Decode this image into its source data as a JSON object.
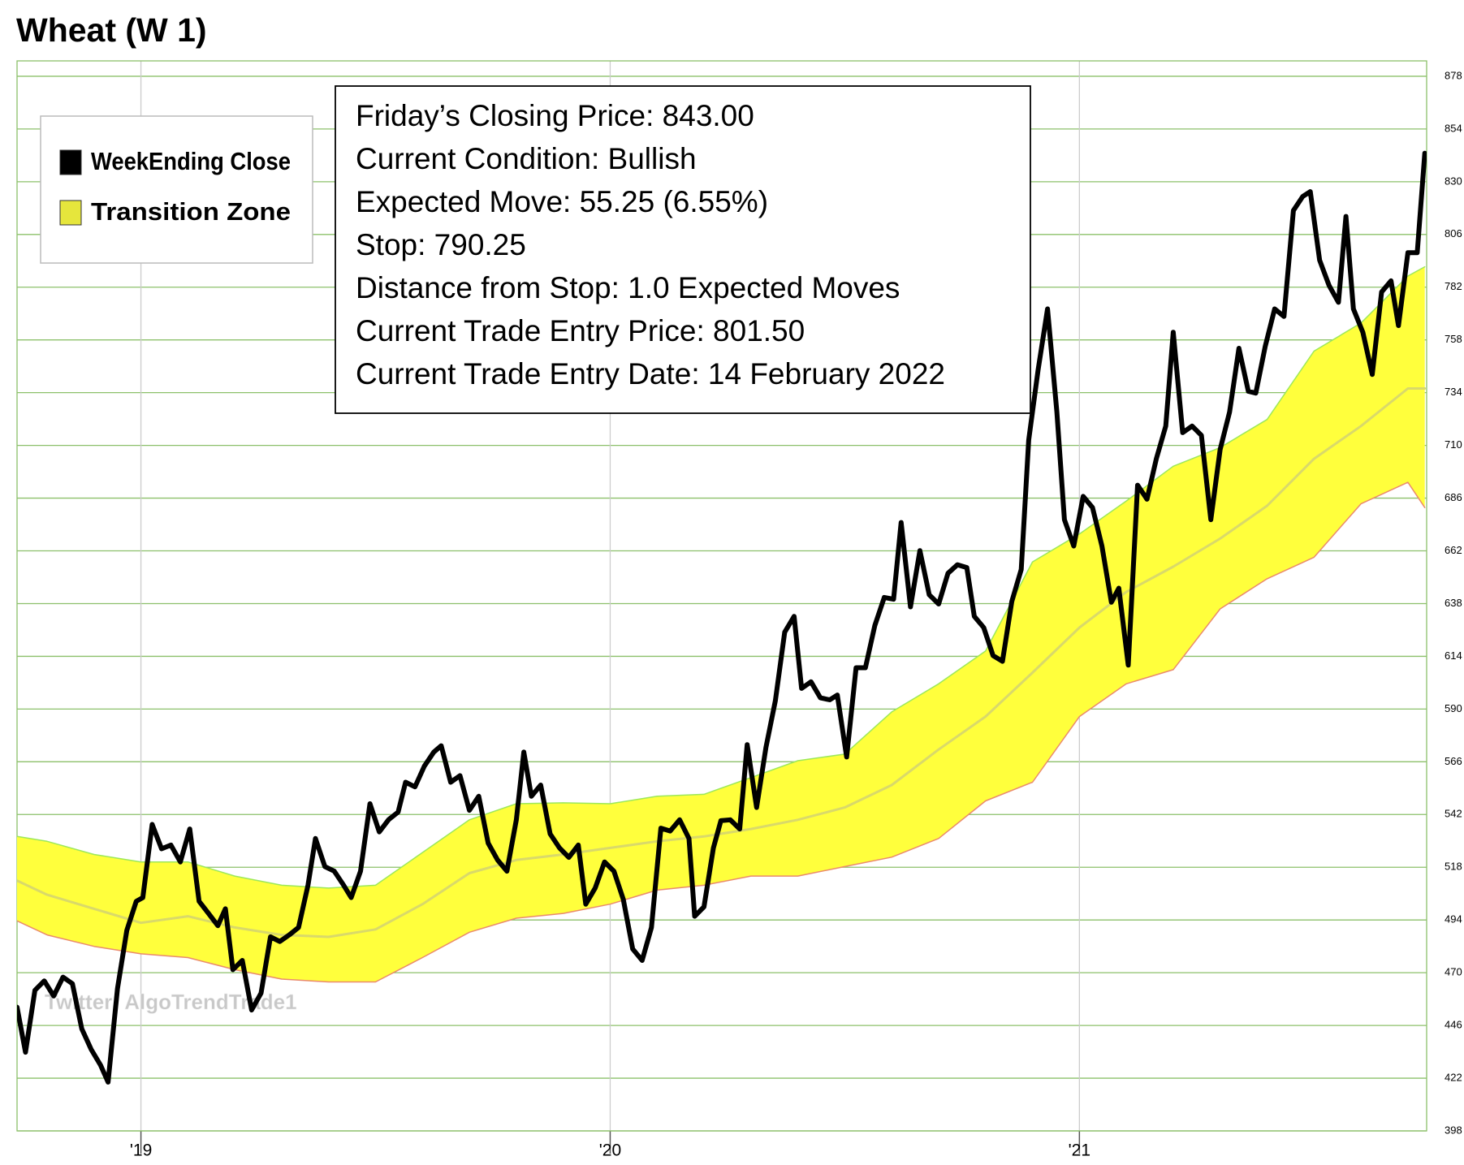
{
  "chart_data": {
    "type": "line",
    "title": "Wheat (W 1)",
    "watermark": "Twitter: AlgoTrendTrade1",
    "info_box": [
      "Friday’s Closing Price: 843.00",
      "Current Condition: Bullish",
      "Expected Move: 55.25 (6.55%)",
      "Stop: 790.25",
      "Distance from Stop: 1.0 Expected Moves",
      "Current Trade Entry Price: 801.50",
      "Current Trade Entry Date: 14 February 2022"
    ],
    "xlim": [
      2018.736,
      2021.74
    ],
    "xticks": [
      {
        "value": 2019,
        "label": "'19"
      },
      {
        "value": 2020,
        "label": "'20"
      },
      {
        "value": 2021,
        "label": "'21"
      }
    ],
    "ylim": [
      398,
      885
    ],
    "yticks": [
      398,
      422,
      446,
      470,
      494,
      518,
      542,
      566,
      590,
      614,
      638,
      662,
      686,
      710,
      734,
      758,
      782,
      806,
      830,
      854,
      878
    ],
    "grid": true,
    "grid_color": "#8cc06a",
    "series": [
      {
        "name": "WeekEnding Close",
        "color": "#000000",
        "x": [
          2018.736,
          2018.754,
          2018.774,
          2018.794,
          2018.814,
          2018.834,
          2018.854,
          2018.874,
          2018.894,
          2018.914,
          2018.93,
          2018.95,
          2018.97,
          2018.99,
          2019.004,
          2019.024,
          2019.044,
          2019.064,
          2019.084,
          2019.104,
          2019.124,
          2019.144,
          2019.164,
          2019.18,
          2019.196,
          2019.216,
          2019.236,
          2019.256,
          2019.276,
          2019.296,
          2019.316,
          2019.336,
          2019.356,
          2019.372,
          2019.392,
          2019.412,
          2019.432,
          2019.448,
          2019.468,
          2019.488,
          2019.508,
          2019.528,
          2019.548,
          2019.564,
          2019.584,
          2019.604,
          2019.624,
          2019.64,
          2019.66,
          2019.68,
          2019.7,
          2019.72,
          2019.74,
          2019.76,
          2019.78,
          2019.8,
          2019.816,
          2019.832,
          2019.852,
          2019.872,
          2019.892,
          2019.912,
          2019.932,
          2019.948,
          2019.968,
          2019.988,
          2020.008,
          2020.028,
          2020.048,
          2020.068,
          2020.088,
          2020.108,
          2020.128,
          2020.148,
          2020.168,
          2020.18,
          2020.2,
          2020.22,
          2020.236,
          2020.256,
          2020.276,
          2020.292,
          2020.312,
          2020.332,
          2020.352,
          2020.372,
          2020.392,
          2020.408,
          2020.428,
          2020.448,
          2020.468,
          2020.484,
          2020.504,
          2020.524,
          2020.544,
          2020.564,
          2020.584,
          2020.604,
          2020.62,
          2020.64,
          2020.66,
          2020.68,
          2020.7,
          2020.72,
          2020.74,
          2020.76,
          2020.776,
          2020.796,
          2020.816,
          2020.836,
          2020.856,
          2020.876,
          2020.892,
          2020.912,
          2020.932,
          2020.952,
          2020.968,
          2020.988,
          2021.008,
          2021.028,
          2021.048,
          2021.068,
          2021.084,
          2021.104,
          2021.124,
          2021.144,
          2021.164,
          2021.184,
          2021.2,
          2021.22,
          2021.24,
          2021.26,
          2021.28,
          2021.3,
          2021.32,
          2021.34,
          2021.36,
          2021.376,
          2021.396,
          2021.416,
          2021.436,
          2021.456,
          2021.476,
          2021.492,
          2021.512,
          2021.532,
          2021.552,
          2021.568,
          2021.584,
          2021.604,
          2021.624,
          2021.644,
          2021.664,
          2021.68,
          2021.7,
          2021.72,
          2021.736
        ],
        "values": [
          454.3,
          433.8,
          462,
          466.3,
          459.4,
          468,
          465,
          444.5,
          435.1,
          427.9,
          420.2,
          462.8,
          489.3,
          502.5,
          504.2,
          537.5,
          526.4,
          528.1,
          520.4,
          535.4,
          502.5,
          497,
          491.4,
          499.1,
          471.4,
          475.6,
          453,
          460.7,
          486.3,
          484.2,
          487.2,
          490.6,
          509.8,
          531.1,
          518.3,
          516.2,
          509.8,
          504.2,
          516.2,
          546.9,
          534.1,
          539.7,
          543.1,
          556.7,
          554.6,
          564,
          570.4,
          573.3,
          556.7,
          559.7,
          543.9,
          550.3,
          529,
          521.3,
          516.2,
          539.6,
          570.4,
          550.3,
          555.4,
          533.2,
          526.8,
          522.5,
          528.1,
          501.2,
          508.5,
          520.4,
          516.2,
          503.4,
          480.8,
          475.6,
          490.6,
          535.8,
          534.5,
          539.6,
          531.1,
          495.7,
          500,
          526.8,
          539.2,
          539.6,
          535.4,
          573.8,
          545.2,
          572.5,
          593.8,
          625,
          632.2,
          599.4,
          602.4,
          595.1,
          594.2,
          596.4,
          568.2,
          608.8,
          608.8,
          628,
          640.8,
          640,
          674.9,
          636.5,
          662.1,
          642,
          637.8,
          651.8,
          655.7,
          654.4,
          632.2,
          627.1,
          614.3,
          611.7,
          639,
          653.5,
          712.4,
          744.4,
          772.1,
          725.2,
          676.2,
          664.2,
          686.8,
          681.7,
          664.2,
          638.6,
          645,
          610,
          691.9,
          685.5,
          703.9,
          718.8,
          761.5,
          715.8,
          718.8,
          714.6,
          676.2,
          708.2,
          725.2,
          754.2,
          734.6,
          733.8,
          755.1,
          772.1,
          768.7,
          816.9,
          823.3,
          825.5,
          794.3,
          782.8,
          775.1,
          814.2,
          772.1,
          761.5,
          742.3,
          779.8,
          784.9,
          764.5,
          797.7,
          797.7,
          843
        ]
      },
      {
        "name": "Transition Zone",
        "color": "#ffff3c",
        "legend_color": "#e6e63c",
        "upper_color": "#9ce85a",
        "middle_color": "#d9d96a",
        "lower_color": "#ea8a6c",
        "x": [
          2018.736,
          2018.8,
          2018.9,
          2019,
          2019.1,
          2019.2,
          2019.3,
          2019.4,
          2019.5,
          2019.6,
          2019.7,
          2019.8,
          2019.9,
          2020,
          2020.1,
          2020.2,
          2020.3,
          2020.4,
          2020.5,
          2020.6,
          2020.7,
          2020.8,
          2020.9,
          2021,
          2021.1,
          2021.2,
          2021.3,
          2021.4,
          2021.5,
          2021.6,
          2021.7,
          2021.736
        ],
        "upper": [
          532,
          529.8,
          523.8,
          520.4,
          520.4,
          514,
          509.8,
          508.5,
          509.8,
          524.7,
          539.6,
          546.9,
          547.3,
          546.9,
          550.3,
          551.2,
          558.8,
          566.5,
          569.5,
          588.7,
          601.5,
          616.4,
          657,
          669.7,
          684.7,
          700.5,
          709,
          721.8,
          752.9,
          765.7,
          787.1,
          791.3
        ],
        "middle": [
          511.9,
          505.5,
          499.1,
          492.7,
          495.7,
          490.6,
          487.2,
          486.3,
          489.7,
          501.2,
          515.3,
          521.3,
          523.8,
          526.8,
          529.8,
          532,
          535.4,
          539.6,
          545.2,
          555.4,
          571.6,
          586.6,
          606.6,
          627.1,
          643.3,
          654.8,
          667.6,
          682.5,
          703.9,
          718.8,
          735.9,
          735.9
        ],
        "lower": [
          493.6,
          487.2,
          482,
          478.6,
          476.9,
          471.4,
          467.1,
          465.8,
          465.8,
          476.9,
          488.4,
          494.8,
          497,
          501.2,
          507.6,
          509.8,
          514,
          514,
          518.3,
          522.6,
          531.1,
          548.2,
          556.7,
          586.6,
          601.5,
          607.9,
          635.6,
          649.3,
          659.1,
          683.4,
          693.2,
          681.7
        ]
      }
    ]
  }
}
